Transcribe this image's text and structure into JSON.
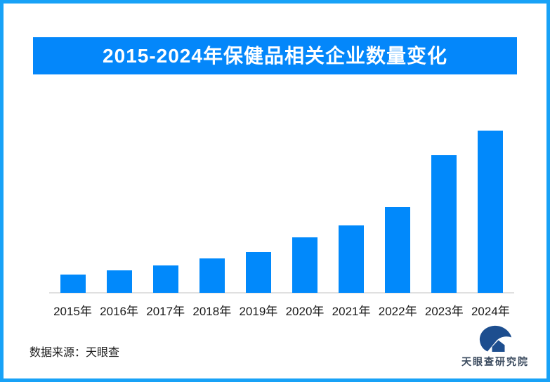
{
  "header": {
    "title": "2015-2024年保健品相关企业数量变化"
  },
  "chart_data": {
    "type": "bar",
    "title": "2015-2024年保健品相关企业数量变化",
    "categories": [
      "2015年",
      "2016年",
      "2017年",
      "2018年",
      "2019年",
      "2020年",
      "2021年",
      "2022年",
      "2023年",
      "2024年"
    ],
    "values": [
      26,
      32,
      39,
      49,
      58,
      79,
      96,
      122,
      196,
      231
    ],
    "value_unit": "relative-bar-height-px (no y-axis or data labels shown)",
    "xlabel": "",
    "ylabel": "",
    "grid": false,
    "legend": false,
    "y_axis_visible": false,
    "bar_color": "#0189fb"
  },
  "footer": {
    "source": "数据来源：天眼查",
    "logo_text": "天眼查研究院"
  },
  "icons": {
    "logo_icon": "tianyancha-eye-house-icon"
  },
  "colors": {
    "border": "#18a2f7",
    "title_bg": "#0487fa",
    "title_text": "#ffffff",
    "bar": "#0189fb",
    "axis_line": "#e0e0e0",
    "label_text": "#191919",
    "logo_navy": "#1d4e8f",
    "logo_text": "#3a4a5e"
  }
}
